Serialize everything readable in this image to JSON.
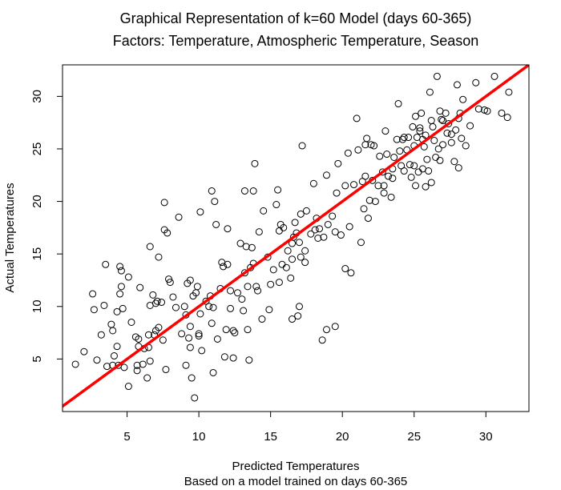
{
  "chart_data": {
    "type": "scatter",
    "title": "Graphical Representation of k=60 Model (days 60-365)",
    "subtitle": "Factors: Temperature, Atmospheric Temperature, Season",
    "xlabel": "Predicted Temperatures",
    "xlabel_sub": "Based on a model trained on days 60-365",
    "ylabel": "Actual Temperatures",
    "xlim": [
      0.5,
      33
    ],
    "ylim": [
      0,
      33
    ],
    "xticks": [
      "5",
      "10",
      "15",
      "20",
      "25",
      "30"
    ],
    "yticks": [
      "5",
      "10",
      "15",
      "20",
      "25",
      "30"
    ],
    "reference_line": {
      "intercept": 0,
      "slope": 1,
      "color": "#ff0000"
    },
    "point_color": "#000000",
    "grid": false,
    "points": [
      [
        1.4,
        4.5
      ],
      [
        2.0,
        5.7
      ],
      [
        2.6,
        11.2
      ],
      [
        2.7,
        9.7
      ],
      [
        2.9,
        4.9
      ],
      [
        3.2,
        7.3
      ],
      [
        3.4,
        10.1
      ],
      [
        3.5,
        14.0
      ],
      [
        3.6,
        4.3
      ],
      [
        3.9,
        8.3
      ],
      [
        4.0,
        4.4
      ],
      [
        4.0,
        7.7
      ],
      [
        4.1,
        5.3
      ],
      [
        4.3,
        6.2
      ],
      [
        4.3,
        9.5
      ],
      [
        4.4,
        4.4
      ],
      [
        4.5,
        13.8
      ],
      [
        4.5,
        11.2
      ],
      [
        4.6,
        11.9
      ],
      [
        4.6,
        13.4
      ],
      [
        4.7,
        9.8
      ],
      [
        4.8,
        4.2
      ],
      [
        5.1,
        2.4
      ],
      [
        5.1,
        12.8
      ],
      [
        5.3,
        8.5
      ],
      [
        5.6,
        7.1
      ],
      [
        5.7,
        4.4
      ],
      [
        5.7,
        3.9
      ],
      [
        5.8,
        6.2
      ],
      [
        5.8,
        6.9
      ],
      [
        5.9,
        11.8
      ],
      [
        6.1,
        4.5
      ],
      [
        6.2,
        6.0
      ],
      [
        6.4,
        3.2
      ],
      [
        6.5,
        6.1
      ],
      [
        6.5,
        7.3
      ],
      [
        6.6,
        4.8
      ],
      [
        6.6,
        15.7
      ],
      [
        6.6,
        10.1
      ],
      [
        6.8,
        11.1
      ],
      [
        6.9,
        7.3
      ],
      [
        7.0,
        7.7
      ],
      [
        7.0,
        10.3
      ],
      [
        7.1,
        10.5
      ],
      [
        7.2,
        8.0
      ],
      [
        7.2,
        14.7
      ],
      [
        7.4,
        10.4
      ],
      [
        7.5,
        6.8
      ],
      [
        7.6,
        17.3
      ],
      [
        7.6,
        19.9
      ],
      [
        7.7,
        4.0
      ],
      [
        7.8,
        17.0
      ],
      [
        7.9,
        12.6
      ],
      [
        8.0,
        12.3
      ],
      [
        8.2,
        10.9
      ],
      [
        8.4,
        9.9
      ],
      [
        8.6,
        18.5
      ],
      [
        8.8,
        7.4
      ],
      [
        9.0,
        10.0
      ],
      [
        9.1,
        9.2
      ],
      [
        9.1,
        4.4
      ],
      [
        9.2,
        12.2
      ],
      [
        9.3,
        7.0
      ],
      [
        9.4,
        6.1
      ],
      [
        9.4,
        12.5
      ],
      [
        9.4,
        8.1
      ],
      [
        9.5,
        3.2
      ],
      [
        9.6,
        11.0
      ],
      [
        9.7,
        1.3
      ],
      [
        9.8,
        11.3
      ],
      [
        9.9,
        11.9
      ],
      [
        10.0,
        7.2
      ],
      [
        10.0,
        7.4
      ],
      [
        10.1,
        19.0
      ],
      [
        10.1,
        9.3
      ],
      [
        10.2,
        5.8
      ],
      [
        10.5,
        10.5
      ],
      [
        10.7,
        10.0
      ],
      [
        10.8,
        11.0
      ],
      [
        10.9,
        8.4
      ],
      [
        10.9,
        21.0
      ],
      [
        11.0,
        3.7
      ],
      [
        11.0,
        9.9
      ],
      [
        11.1,
        20.0
      ],
      [
        11.2,
        17.8
      ],
      [
        11.3,
        6.9
      ],
      [
        11.5,
        11.7
      ],
      [
        11.6,
        14.2
      ],
      [
        11.7,
        13.8
      ],
      [
        11.8,
        5.2
      ],
      [
        11.9,
        7.8
      ],
      [
        12.0,
        17.4
      ],
      [
        12.0,
        14.0
      ],
      [
        12.2,
        9.8
      ],
      [
        12.2,
        11.5
      ],
      [
        12.4,
        7.7
      ],
      [
        12.4,
        5.1
      ],
      [
        12.5,
        7.5
      ],
      [
        12.7,
        11.3
      ],
      [
        12.9,
        16.0
      ],
      [
        13.0,
        10.7
      ],
      [
        13.1,
        9.6
      ],
      [
        13.2,
        21.0
      ],
      [
        13.2,
        13.2
      ],
      [
        13.3,
        15.7
      ],
      [
        13.4,
        7.8
      ],
      [
        13.4,
        11.9
      ],
      [
        13.5,
        4.9
      ],
      [
        13.6,
        13.7
      ],
      [
        13.7,
        15.6
      ],
      [
        13.8,
        14.1
      ],
      [
        13.8,
        21.0
      ],
      [
        13.9,
        23.6
      ],
      [
        14.0,
        11.9
      ],
      [
        14.1,
        11.5
      ],
      [
        14.2,
        17.1
      ],
      [
        14.4,
        8.8
      ],
      [
        14.5,
        19.1
      ],
      [
        14.8,
        14.7
      ],
      [
        14.9,
        9.7
      ],
      [
        15.0,
        12.1
      ],
      [
        15.2,
        13.5
      ],
      [
        15.4,
        19.7
      ],
      [
        15.5,
        21.1
      ],
      [
        15.6,
        17.2
      ],
      [
        15.6,
        12.3
      ],
      [
        15.7,
        17.8
      ],
      [
        15.8,
        14.0
      ],
      [
        15.9,
        17.5
      ],
      [
        16.1,
        13.7
      ],
      [
        16.2,
        15.3
      ],
      [
        16.4,
        12.7
      ],
      [
        16.5,
        8.8
      ],
      [
        16.5,
        14.5
      ],
      [
        16.5,
        16.0
      ],
      [
        16.6,
        16.6
      ],
      [
        16.7,
        18.0
      ],
      [
        16.8,
        17.0
      ],
      [
        16.9,
        9.1
      ],
      [
        17.0,
        10.0
      ],
      [
        17.0,
        16.1
      ],
      [
        17.1,
        14.7
      ],
      [
        17.1,
        18.8
      ],
      [
        17.2,
        25.3
      ],
      [
        17.4,
        14.2
      ],
      [
        17.4,
        15.3
      ],
      [
        17.5,
        19.1
      ],
      [
        17.8,
        16.9
      ],
      [
        18.0,
        21.7
      ],
      [
        18.1,
        17.3
      ],
      [
        18.2,
        18.4
      ],
      [
        18.3,
        16.5
      ],
      [
        18.4,
        17.4
      ],
      [
        18.6,
        6.8
      ],
      [
        18.7,
        16.6
      ],
      [
        18.9,
        7.8
      ],
      [
        18.9,
        22.5
      ],
      [
        19.0,
        17.8
      ],
      [
        19.3,
        18.6
      ],
      [
        19.5,
        17.1
      ],
      [
        19.5,
        8.1
      ],
      [
        19.6,
        20.8
      ],
      [
        19.7,
        23.6
      ],
      [
        19.9,
        16.8
      ],
      [
        20.2,
        21.5
      ],
      [
        20.2,
        13.6
      ],
      [
        20.4,
        24.6
      ],
      [
        20.5,
        17.6
      ],
      [
        20.6,
        13.2
      ],
      [
        20.8,
        21.6
      ],
      [
        21.0,
        27.9
      ],
      [
        21.1,
        24.9
      ],
      [
        21.3,
        16.1
      ],
      [
        21.4,
        21.9
      ],
      [
        21.5,
        19.3
      ],
      [
        21.6,
        22.4
      ],
      [
        21.6,
        25.4
      ],
      [
        21.7,
        26.0
      ],
      [
        21.8,
        18.4
      ],
      [
        21.9,
        20.1
      ],
      [
        22.0,
        25.4
      ],
      [
        22.1,
        22.0
      ],
      [
        22.2,
        25.3
      ],
      [
        22.3,
        20.0
      ],
      [
        22.5,
        21.5
      ],
      [
        22.6,
        24.3
      ],
      [
        22.8,
        22.8
      ],
      [
        22.9,
        20.8
      ],
      [
        23.0,
        26.7
      ],
      [
        23.1,
        24.5
      ],
      [
        23.2,
        22.4
      ],
      [
        23.4,
        20.4
      ],
      [
        23.5,
        22.2
      ],
      [
        23.6,
        24.2
      ],
      [
        23.8,
        25.9
      ],
      [
        23.9,
        29.3
      ],
      [
        24.0,
        24.8
      ],
      [
        24.1,
        23.4
      ],
      [
        24.2,
        25.9
      ],
      [
        24.3,
        22.9
      ],
      [
        24.5,
        24.9
      ],
      [
        24.6,
        26.1
      ],
      [
        24.7,
        23.5
      ],
      [
        24.8,
        22.3
      ],
      [
        24.9,
        27.1
      ],
      [
        25.0,
        23.4
      ],
      [
        25.0,
        25.3
      ],
      [
        25.1,
        28.1
      ],
      [
        25.1,
        21.5
      ],
      [
        25.2,
        26.1
      ],
      [
        25.3,
        22.8
      ],
      [
        25.4,
        26.7
      ],
      [
        25.5,
        28.4
      ],
      [
        25.6,
        25.9
      ],
      [
        25.6,
        23.1
      ],
      [
        25.7,
        25.2
      ],
      [
        25.8,
        26.3
      ],
      [
        25.9,
        24.0
      ],
      [
        26.0,
        22.9
      ],
      [
        26.1,
        30.4
      ],
      [
        26.2,
        21.8
      ],
      [
        26.3,
        27.1
      ],
      [
        26.4,
        25.8
      ],
      [
        26.5,
        24.2
      ],
      [
        26.6,
        31.9
      ],
      [
        26.7,
        25.0
      ],
      [
        26.8,
        28.6
      ],
      [
        26.9,
        27.8
      ],
      [
        27.0,
        25.4
      ],
      [
        27.2,
        28.4
      ],
      [
        27.3,
        26.5
      ],
      [
        27.4,
        27.4
      ],
      [
        27.6,
        25.6
      ],
      [
        27.8,
        23.8
      ],
      [
        27.9,
        26.8
      ],
      [
        28.0,
        31.1
      ],
      [
        28.1,
        23.2
      ],
      [
        28.2,
        28.4
      ],
      [
        28.3,
        26.0
      ],
      [
        28.4,
        29.7
      ],
      [
        28.6,
        25.3
      ],
      [
        28.9,
        27.2
      ],
      [
        29.3,
        31.3
      ],
      [
        29.5,
        28.8
      ],
      [
        29.9,
        28.7
      ],
      [
        30.6,
        31.9
      ],
      [
        31.1,
        28.4
      ],
      [
        31.5,
        28.0
      ],
      [
        31.6,
        30.4
      ],
      [
        30.1,
        28.6
      ],
      [
        26.2,
        27.7
      ],
      [
        27.0,
        27.7
      ],
      [
        24.3,
        26.1
      ],
      [
        23.5,
        23.1
      ],
      [
        22.9,
        21.5
      ],
      [
        26.8,
        23.9
      ],
      [
        27.6,
        26.4
      ],
      [
        25.8,
        21.4
      ],
      [
        25.4,
        27.0
      ],
      [
        28.1,
        27.9
      ]
    ]
  }
}
